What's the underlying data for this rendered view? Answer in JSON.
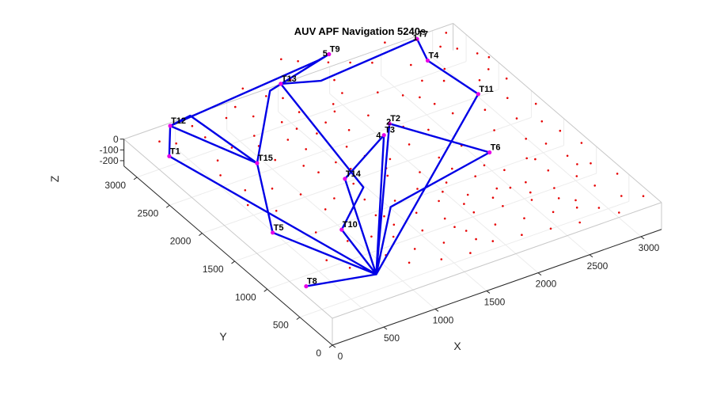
{
  "chart_data": {
    "type": "scatter",
    "title": "AUV APF Navigation 5240s",
    "xlabel": "X",
    "ylabel": "Y",
    "zlabel": "Z",
    "x_ticks": [
      "0",
      "500",
      "1000",
      "1500",
      "2000",
      "2500",
      "3000"
    ],
    "y_ticks": [
      "0",
      "500",
      "1000",
      "1500",
      "2000",
      "2500",
      "3000"
    ],
    "z_ticks": [
      "0",
      "-100",
      "-200"
    ],
    "xlim": [
      0,
      3200
    ],
    "ylim": [
      0,
      3200
    ],
    "zlim": [
      -250,
      0
    ],
    "grid": true,
    "colors": {
      "path": "#0000e6",
      "targets": "#e600e6",
      "obstacles": "#e60000"
    },
    "targets": [
      {
        "label": "T1",
        "x": 200,
        "y": 2820
      },
      {
        "label": "T2",
        "x": 1980,
        "y": 2250
      },
      {
        "label": "T3",
        "x": 1850,
        "y": 2130
      },
      {
        "label": "T4",
        "x": 2750,
        "y": 2880
      },
      {
        "label": "T5",
        "x": 300,
        "y": 1390
      },
      {
        "label": "T6",
        "x": 2440,
        "y": 1440
      },
      {
        "label": "T7",
        "x": 2850,
        "y": 3200
      },
      {
        "label": "T8",
        "x": 100,
        "y": 560
      },
      {
        "label": "T9",
        "x": 2120,
        "y": 3400
      },
      {
        "label": "T10",
        "x": 800,
        "y": 1120
      },
      {
        "label": "T11",
        "x": 2830,
        "y": 2230
      },
      {
        "label": "T12",
        "x": 450,
        "y": 3200
      },
      {
        "label": "T13",
        "x": 1550,
        "y": 3240
      },
      {
        "label": "T14",
        "x": 1230,
        "y": 1750
      },
      {
        "label": "T15",
        "x": 750,
        "y": 2340
      }
    ],
    "number_labels": [
      {
        "label": "1",
        "x": 2820,
        "y": 3170
      },
      {
        "label": "2",
        "x": 1960,
        "y": 2220
      },
      {
        "label": "4",
        "x": 1780,
        "y": 2090
      },
      {
        "label": "5",
        "x": 2070,
        "y": 3370
      }
    ],
    "path": [
      [
        100,
        560
      ],
      [
        680,
        400
      ],
      [
        1320,
        1190
      ],
      [
        2440,
        1440
      ],
      [
        1980,
        2250
      ],
      [
        680,
        400
      ],
      [
        1230,
        1750
      ],
      [
        1850,
        2130
      ],
      [
        680,
        400
      ],
      [
        2830,
        2230
      ],
      [
        2750,
        2880
      ],
      [
        2850,
        3200
      ],
      [
        1850,
        3100
      ],
      [
        1550,
        3240
      ],
      [
        1290,
        1560
      ],
      [
        800,
        1120
      ],
      [
        680,
        400
      ],
      [
        300,
        1390
      ],
      [
        750,
        2340
      ],
      [
        1420,
        3200
      ],
      [
        2120,
        3400
      ],
      [
        2000,
        3370
      ],
      [
        450,
        3200
      ],
      [
        670,
        3240
      ],
      [
        750,
        2340
      ],
      [
        450,
        3200
      ],
      [
        200,
        2820
      ],
      [
        680,
        400
      ]
    ],
    "obstacles": [
      [
        1350,
        3150
      ],
      [
        2050,
        3300
      ],
      [
        1850,
        3450
      ],
      [
        1650,
        3250
      ],
      [
        900,
        3050
      ],
      [
        1100,
        2950
      ],
      [
        1450,
        2800
      ],
      [
        1700,
        2650
      ],
      [
        1900,
        2850
      ],
      [
        2350,
        3100
      ],
      [
        2600,
        3300
      ],
      [
        2950,
        3000
      ],
      [
        3050,
        2900
      ],
      [
        3150,
        2750
      ],
      [
        3100,
        2500
      ],
      [
        2950,
        2400
      ],
      [
        2700,
        2550
      ],
      [
        2400,
        2450
      ],
      [
        2150,
        2700
      ],
      [
        1900,
        2450
      ],
      [
        1650,
        2350
      ],
      [
        1400,
        2450
      ],
      [
        1150,
        2500
      ],
      [
        950,
        2700
      ],
      [
        700,
        2650
      ],
      [
        600,
        2900
      ],
      [
        350,
        2950
      ],
      [
        500,
        2550
      ],
      [
        900,
        2300
      ],
      [
        1050,
        2100
      ],
      [
        1300,
        2000
      ],
      [
        1550,
        1950
      ],
      [
        1700,
        1800
      ],
      [
        1950,
        1900
      ],
      [
        2200,
        2000
      ],
      [
        2500,
        2100
      ],
      [
        2750,
        2000
      ],
      [
        3000,
        2050
      ],
      [
        3150,
        1850
      ],
      [
        2900,
        1750
      ],
      [
        2650,
        1700
      ],
      [
        2300,
        1650
      ],
      [
        2050,
        1600
      ],
      [
        1800,
        1500
      ],
      [
        1550,
        1600
      ],
      [
        1200,
        1400
      ],
      [
        1000,
        1550
      ],
      [
        800,
        1750
      ],
      [
        650,
        1950
      ],
      [
        450,
        2050
      ],
      [
        350,
        1850
      ],
      [
        500,
        1650
      ],
      [
        1000,
        1300
      ],
      [
        1150,
        1150
      ],
      [
        1400,
        1250
      ],
      [
        1650,
        1300
      ],
      [
        1900,
        1250
      ],
      [
        2150,
        1200
      ],
      [
        2400,
        1150
      ],
      [
        2650,
        1200
      ],
      [
        2900,
        1300
      ],
      [
        3100,
        1400
      ],
      [
        3150,
        1150
      ],
      [
        2950,
        1050
      ],
      [
        2700,
        950
      ],
      [
        2450,
        900
      ],
      [
        2200,
        950
      ],
      [
        1950,
        1000
      ],
      [
        1700,
        1050
      ],
      [
        1450,
        1000
      ],
      [
        1200,
        950
      ],
      [
        950,
        900
      ],
      [
        1100,
        800
      ],
      [
        1350,
        750
      ],
      [
        1600,
        800
      ],
      [
        1850,
        750
      ],
      [
        2100,
        700
      ],
      [
        2350,
        650
      ],
      [
        2600,
        700
      ],
      [
        2850,
        750
      ],
      [
        3050,
        850
      ],
      [
        3150,
        600
      ],
      [
        2900,
        550
      ],
      [
        2650,
        450
      ],
      [
        2400,
        400
      ],
      [
        2150,
        450
      ],
      [
        1900,
        500
      ],
      [
        1650,
        550
      ],
      [
        1400,
        500
      ],
      [
        1150,
        550
      ],
      [
        900,
        600
      ],
      [
        1000,
        400
      ],
      [
        1250,
        300
      ],
      [
        1500,
        250
      ],
      [
        1750,
        300
      ],
      [
        2000,
        250
      ],
      [
        2250,
        200
      ],
      [
        2500,
        150
      ],
      [
        2750,
        250
      ],
      [
        3000,
        300
      ],
      [
        3150,
        200
      ],
      [
        2850,
        100
      ],
      [
        2600,
        350
      ],
      [
        2300,
        900
      ],
      [
        2050,
        2150
      ],
      [
        1750,
        2750
      ],
      [
        1300,
        2600
      ],
      [
        600,
        3100
      ],
      [
        250,
        3050
      ],
      [
        400,
        2350
      ],
      [
        1200,
        2300
      ],
      [
        1500,
        2150
      ],
      [
        2600,
        2900
      ],
      [
        3100,
        3150
      ],
      [
        2200,
        3200
      ],
      [
        1950,
        3050
      ],
      [
        1250,
        3350
      ],
      [
        1750,
        3550
      ],
      [
        2450,
        2300
      ],
      [
        1250,
        1650
      ],
      [
        850,
        1450
      ],
      [
        600,
        1200
      ],
      [
        450,
        800
      ],
      [
        750,
        950
      ],
      [
        550,
        600
      ],
      [
        1800,
        1150
      ],
      [
        2050,
        1400
      ],
      [
        2300,
        1300
      ],
      [
        2800,
        1450
      ],
      [
        3050,
        1600
      ],
      [
        1600,
        1700
      ],
      [
        1350,
        1850
      ],
      [
        1100,
        1950
      ],
      [
        2700,
        1150
      ],
      [
        2950,
        900
      ],
      [
        2550,
        550
      ],
      [
        1600,
        650
      ],
      [
        1850,
        900
      ],
      [
        2100,
        850
      ],
      [
        2400,
        750
      ],
      [
        900,
        2550
      ],
      [
        1250,
        2750
      ],
      [
        1550,
        2550
      ],
      [
        2800,
        2700
      ],
      [
        3150,
        2300
      ],
      [
        3200,
        2650
      ],
      [
        1050,
        3150
      ],
      [
        1450,
        3050
      ],
      [
        2300,
        2550
      ],
      [
        2550,
        2650
      ],
      [
        1200,
        1100
      ],
      [
        1650,
        400
      ]
    ]
  }
}
